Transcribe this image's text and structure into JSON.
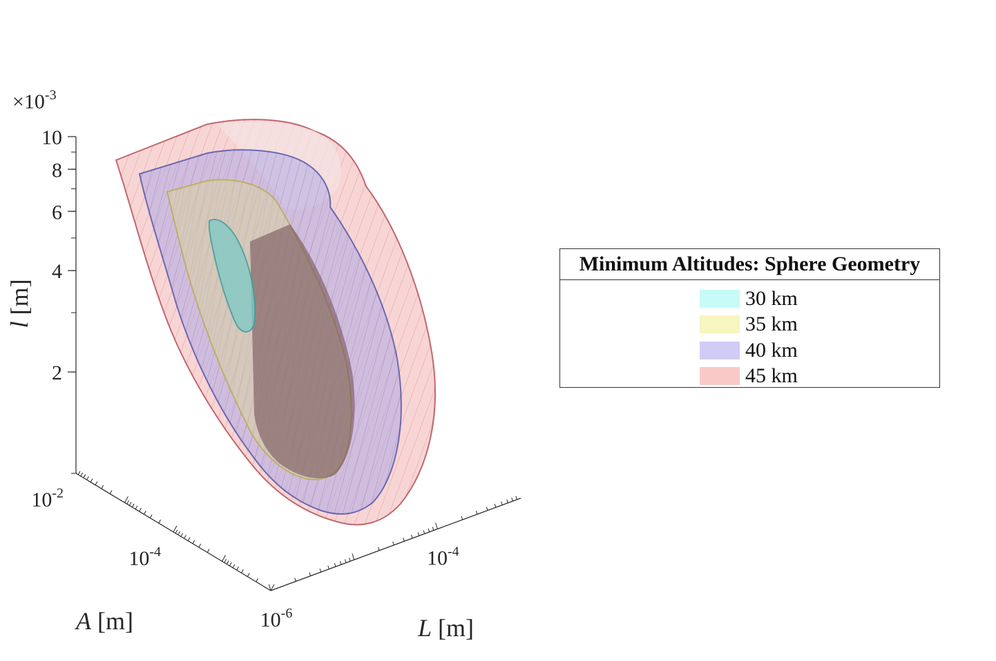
{
  "chart_data": {
    "type": "surface3d",
    "title": "",
    "axis_multiplier": {
      "base": "×10",
      "exponent": "-3"
    },
    "axes": {
      "z": {
        "label_var": "l",
        "label_unit": " [m]",
        "scale": "log",
        "range": [
          0.001,
          0.01
        ],
        "ticks": [
          {
            "value": 0.002,
            "label": "2"
          },
          {
            "value": 0.004,
            "label": "4"
          },
          {
            "value": 0.006,
            "label": "6"
          },
          {
            "value": 0.008,
            "label": "8"
          },
          {
            "value": 0.01,
            "label": "10"
          }
        ]
      },
      "A": {
        "label_var": "A",
        "label_unit": " [m]",
        "scale": "log",
        "range": [
          1e-06,
          0.01
        ],
        "ticks": [
          {
            "value": 0.0001,
            "base": "10",
            "exp": "-4"
          },
          {
            "value": 0.01,
            "base": "10",
            "exp": "-2"
          }
        ]
      },
      "L": {
        "label_var": "L",
        "label_unit": " [m]",
        "scale": "log",
        "range": [
          1e-06,
          0.001
        ],
        "ticks": [
          {
            "value": 1e-06,
            "base": "10",
            "exp": "-6"
          },
          {
            "value": 0.0001,
            "base": "10",
            "exp": "-4"
          }
        ]
      }
    },
    "legend": {
      "title": "Minimum Altitudes: Sphere Geometry",
      "placement": "right",
      "entries": [
        {
          "label": "30 km",
          "color": "#c6fbf7"
        },
        {
          "label": "35 km",
          "color": "#f8f6bf"
        },
        {
          "label": "40 km",
          "color": "#cfcdf6"
        },
        {
          "label": "45 km",
          "color": "#f8c9c6"
        }
      ]
    },
    "surfaces": [
      {
        "altitude_km": 45,
        "fill": "#f1b3b1",
        "edge": "#a8303a"
      },
      {
        "altitude_km": 40,
        "fill": "#b1a9e4",
        "edge": "#3b3ea0"
      },
      {
        "altitude_km": 35,
        "fill": "#d9cfa8",
        "edge": "#b5a83a"
      },
      {
        "altitude_km": 30,
        "fill": "#7cc9c6",
        "edge": "#3d9a98"
      }
    ]
  }
}
